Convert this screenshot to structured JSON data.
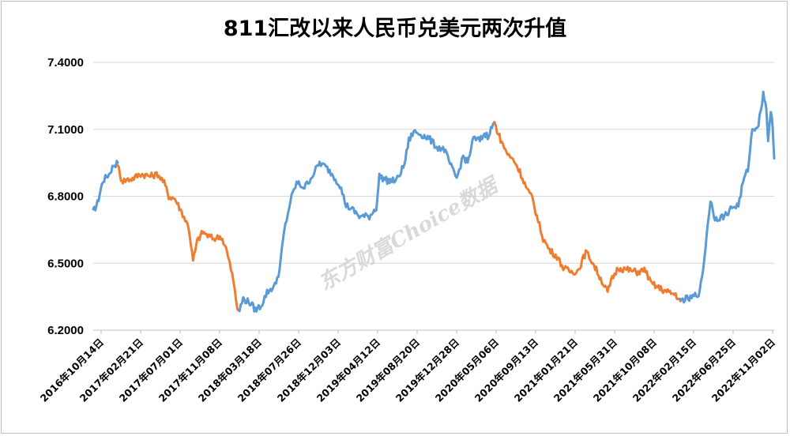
{
  "chart_data": {
    "type": "line",
    "title": "811汇改以来人民币兑美元两次升值",
    "xlabel": "",
    "ylabel": "",
    "ylim": [
      6.2,
      7.4
    ],
    "yticks": [
      "7.4000",
      "7.1000",
      "6.8000",
      "6.5000",
      "6.2000"
    ],
    "xticks": [
      "2016年10月14日",
      "2017年02月21日",
      "2017年07月01日",
      "2017年11月08日",
      "2018年03月18日",
      "2018年07月26日",
      "2018年12月03日",
      "2019年04月12日",
      "2019年08月20日",
      "2019年12月28日",
      "2020年05月06日",
      "2020年09月13日",
      "2021年01月21日",
      "2021年05月31日",
      "2021年10月08日",
      "2022年02月15日",
      "2022年06月25日",
      "2022年11月02日"
    ],
    "grid": true,
    "legend": "none",
    "watermark": "东方财富Choice数据",
    "colors": {
      "rising_usd": "#5b9bd5",
      "appreciation": "#ed7d31"
    },
    "series": [
      {
        "color": "#5b9bd5",
        "points": [
          [
            "2016-10-14",
            6.73
          ],
          [
            "2016-10-28",
            6.77
          ],
          [
            "2016-11-15",
            6.87
          ],
          [
            "2016-12-05",
            6.9
          ],
          [
            "2016-12-20",
            6.94
          ],
          [
            "2017-01-03",
            6.95
          ]
        ]
      },
      {
        "color": "#ed7d31",
        "points": [
          [
            "2017-01-03",
            6.95
          ],
          [
            "2017-01-10",
            6.89
          ],
          [
            "2017-01-20",
            6.87
          ],
          [
            "2017-02-21",
            6.88
          ],
          [
            "2017-03-20",
            6.9
          ],
          [
            "2017-04-20",
            6.89
          ],
          [
            "2017-05-15",
            6.9
          ],
          [
            "2017-06-05",
            6.86
          ],
          [
            "2017-06-20",
            6.8
          ],
          [
            "2017-07-10",
            6.79
          ],
          [
            "2017-08-05",
            6.72
          ],
          [
            "2017-08-25",
            6.66
          ],
          [
            "2017-09-08",
            6.51
          ],
          [
            "2017-09-22",
            6.6
          ],
          [
            "2017-10-10",
            6.64
          ],
          [
            "2017-10-30",
            6.62
          ],
          [
            "2017-11-15",
            6.61
          ],
          [
            "2017-12-10",
            6.62
          ],
          [
            "2017-12-25",
            6.57
          ],
          [
            "2018-01-15",
            6.45
          ],
          [
            "2018-02-01",
            6.3
          ],
          [
            "2018-02-08",
            6.29
          ]
        ]
      },
      {
        "color": "#5b9bd5",
        "points": [
          [
            "2018-02-08",
            6.29
          ],
          [
            "2018-02-20",
            6.34
          ],
          [
            "2018-03-18",
            6.32
          ],
          [
            "2018-04-01",
            6.29
          ],
          [
            "2018-04-20",
            6.31
          ],
          [
            "2018-05-10",
            6.37
          ],
          [
            "2018-06-05",
            6.4
          ],
          [
            "2018-06-20",
            6.47
          ],
          [
            "2018-07-05",
            6.64
          ],
          [
            "2018-07-26",
            6.78
          ],
          [
            "2018-08-15",
            6.86
          ],
          [
            "2018-09-10",
            6.84
          ],
          [
            "2018-10-05",
            6.89
          ],
          [
            "2018-10-30",
            6.95
          ],
          [
            "2018-11-20",
            6.93
          ],
          [
            "2018-12-10",
            6.9
          ],
          [
            "2019-01-05",
            6.85
          ],
          [
            "2019-01-25",
            6.76
          ],
          [
            "2019-02-15",
            6.74
          ],
          [
            "2019-03-10",
            6.71
          ],
          [
            "2019-04-12",
            6.71
          ],
          [
            "2019-05-05",
            6.75
          ],
          [
            "2019-05-15",
            6.89
          ],
          [
            "2019-06-10",
            6.87
          ],
          [
            "2019-07-10",
            6.87
          ],
          [
            "2019-08-05",
            6.94
          ],
          [
            "2019-08-20",
            7.05
          ],
          [
            "2019-09-05",
            7.09
          ],
          [
            "2019-09-25",
            7.08
          ],
          [
            "2019-10-25",
            7.06
          ],
          [
            "2019-11-20",
            7.02
          ],
          [
            "2019-12-15",
            7.01
          ],
          [
            "2020-01-10",
            6.92
          ],
          [
            "2020-01-25",
            6.88
          ],
          [
            "2020-02-15",
            6.98
          ],
          [
            "2020-03-01",
            6.95
          ],
          [
            "2020-03-20",
            7.06
          ],
          [
            "2020-04-10",
            7.05
          ],
          [
            "2020-04-25",
            7.08
          ],
          [
            "2020-05-06",
            7.07
          ],
          [
            "2020-05-20",
            7.11
          ],
          [
            "2020-05-28",
            7.13
          ]
        ]
      },
      {
        "color": "#ed7d31",
        "points": [
          [
            "2020-05-28",
            7.13
          ],
          [
            "2020-06-10",
            7.08
          ],
          [
            "2020-06-25",
            7.03
          ],
          [
            "2020-07-15",
            6.98
          ],
          [
            "2020-08-01",
            6.96
          ],
          [
            "2020-08-20",
            6.91
          ],
          [
            "2020-09-13",
            6.83
          ],
          [
            "2020-09-30",
            6.79
          ],
          [
            "2020-10-15",
            6.71
          ],
          [
            "2020-11-05",
            6.61
          ],
          [
            "2020-11-25",
            6.56
          ],
          [
            "2020-12-20",
            6.53
          ],
          [
            "2021-01-10",
            6.48
          ],
          [
            "2021-01-21",
            6.47
          ],
          [
            "2021-02-10",
            6.46
          ],
          [
            "2021-03-01",
            6.47
          ],
          [
            "2021-03-25",
            6.55
          ],
          [
            "2021-04-10",
            6.52
          ],
          [
            "2021-05-10",
            6.44
          ],
          [
            "2021-06-05",
            6.37
          ],
          [
            "2021-06-20",
            6.43
          ],
          [
            "2021-07-10",
            6.48
          ],
          [
            "2021-08-10",
            6.47
          ],
          [
            "2021-09-10",
            6.46
          ],
          [
            "2021-10-08",
            6.47
          ],
          [
            "2021-10-25",
            6.41
          ],
          [
            "2021-11-20",
            6.39
          ],
          [
            "2021-12-20",
            6.37
          ],
          [
            "2022-01-15",
            6.36
          ],
          [
            "2022-01-31",
            6.33
          ]
        ]
      },
      {
        "color": "#5b9bd5",
        "points": [
          [
            "2022-01-31",
            6.33
          ],
          [
            "2022-02-15",
            6.34
          ],
          [
            "2022-03-05",
            6.34
          ],
          [
            "2022-04-05",
            6.37
          ],
          [
            "2022-04-20",
            6.52
          ],
          [
            "2022-05-01",
            6.68
          ],
          [
            "2022-05-10",
            6.78
          ],
          [
            "2022-05-25",
            6.7
          ],
          [
            "2022-06-25",
            6.71
          ],
          [
            "2022-07-20",
            6.75
          ],
          [
            "2022-08-10",
            6.76
          ],
          [
            "2022-08-25",
            6.86
          ],
          [
            "2022-09-10",
            6.92
          ],
          [
            "2022-09-25",
            7.1
          ],
          [
            "2022-10-15",
            7.12
          ],
          [
            "2022-10-31",
            7.26
          ],
          [
            "2022-11-10",
            7.2
          ],
          [
            "2022-11-16",
            7.05
          ],
          [
            "2022-11-25",
            7.17
          ],
          [
            "2022-12-01",
            7.12
          ],
          [
            "2022-12-06",
            6.97
          ]
        ]
      }
    ]
  }
}
